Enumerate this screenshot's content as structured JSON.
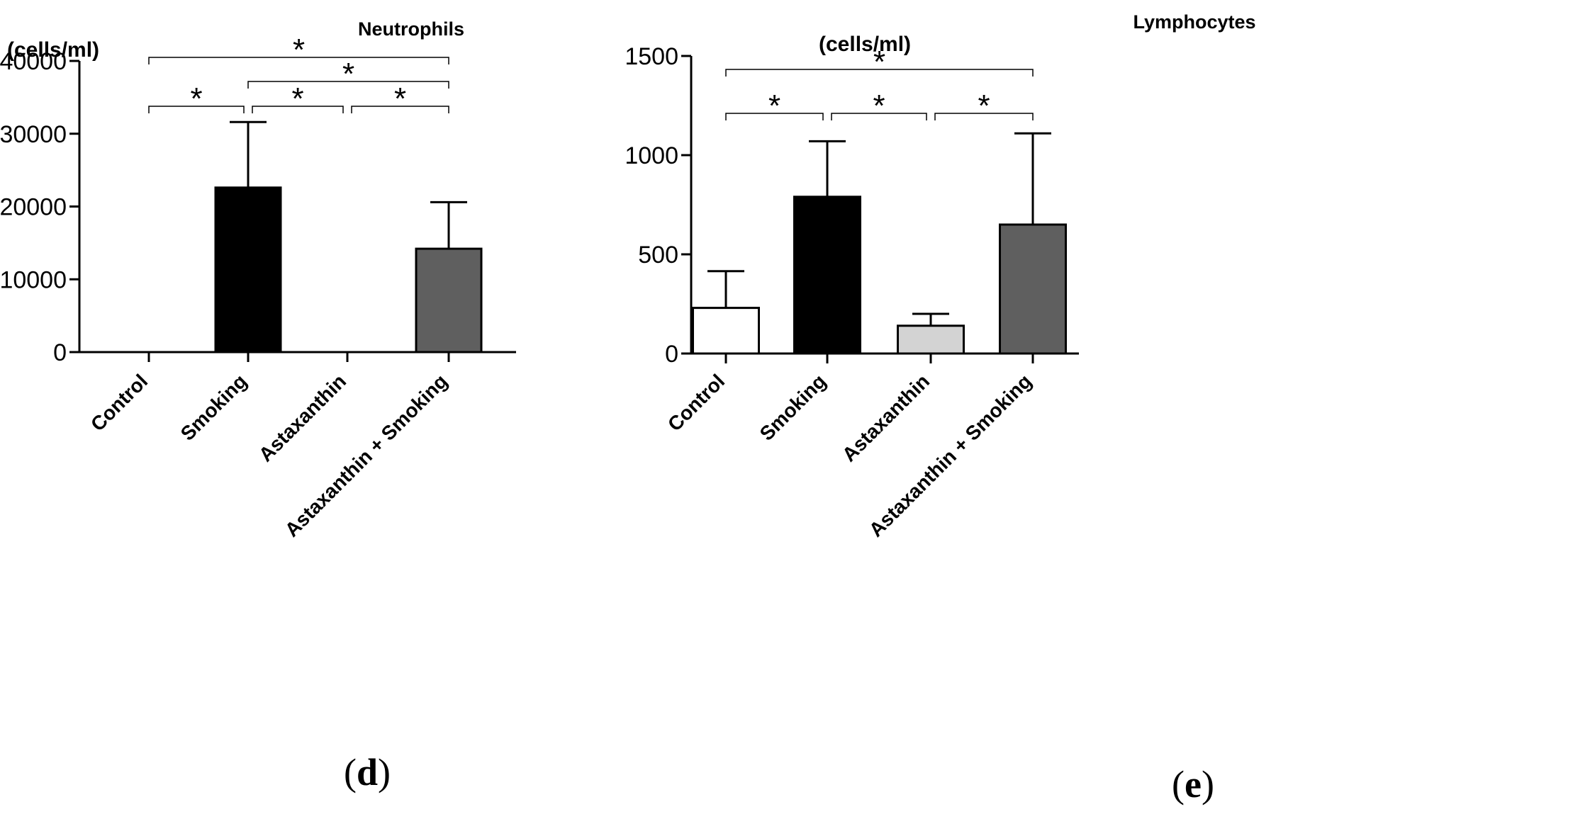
{
  "chart_data": [
    {
      "type": "bar",
      "title": "Neutrophils",
      "ylabel": "(cells/ml)",
      "xlabel": "",
      "panel": {
        "open": "(",
        "letter": "d",
        "close": ")"
      },
      "categories": [
        "Control",
        "Smoking",
        "Astaxanthin",
        "Astaxanthin + Smoking"
      ],
      "values": [
        0,
        22600,
        0,
        14200
      ],
      "errors": [
        0,
        9000,
        0,
        6400
      ],
      "bar_colors": [
        "#ffffff",
        "#000000",
        "#d3d3d3",
        "#5f5f5f"
      ],
      "ylim": [
        0,
        40000
      ],
      "yticks": [
        0,
        10000,
        20000,
        30000,
        40000
      ],
      "ytick_labels": [
        "0",
        "10000",
        "20000",
        "30000",
        "40000"
      ],
      "significance": [
        {
          "from": 0,
          "to": 1,
          "label": "*",
          "level": 0
        },
        {
          "from": 1,
          "to": 2,
          "label": "*",
          "level": 0
        },
        {
          "from": 2,
          "to": 3,
          "label": "*",
          "level": 0
        },
        {
          "from": 1,
          "to": 3,
          "label": "*",
          "level": 1
        },
        {
          "from": 0,
          "to": 3,
          "label": "*",
          "level": 2
        }
      ]
    },
    {
      "type": "bar",
      "title": "Lymphocytes",
      "ylabel": "(cells/ml)",
      "xlabel": "",
      "panel": {
        "open": "(",
        "letter": "e",
        "close": ")"
      },
      "categories": [
        "Control",
        "Smoking",
        "Astaxanthin",
        "Astaxanthin + Smoking"
      ],
      "values": [
        230,
        790,
        140,
        650
      ],
      "errors": [
        185,
        280,
        60,
        460
      ],
      "bar_colors": [
        "#ffffff",
        "#000000",
        "#d3d3d3",
        "#5f5f5f"
      ],
      "ylim": [
        0,
        1500
      ],
      "yticks": [
        0,
        500,
        1000,
        1500
      ],
      "ytick_labels": [
        "0",
        "500",
        "1000",
        "1500"
      ],
      "significance": [
        {
          "from": 0,
          "to": 1,
          "label": "*",
          "level": 0
        },
        {
          "from": 1,
          "to": 2,
          "label": "*",
          "level": 0
        },
        {
          "from": 2,
          "to": 3,
          "label": "*",
          "level": 0
        },
        {
          "from": 0,
          "to": 3,
          "label": "*",
          "level": 1
        }
      ]
    }
  ]
}
